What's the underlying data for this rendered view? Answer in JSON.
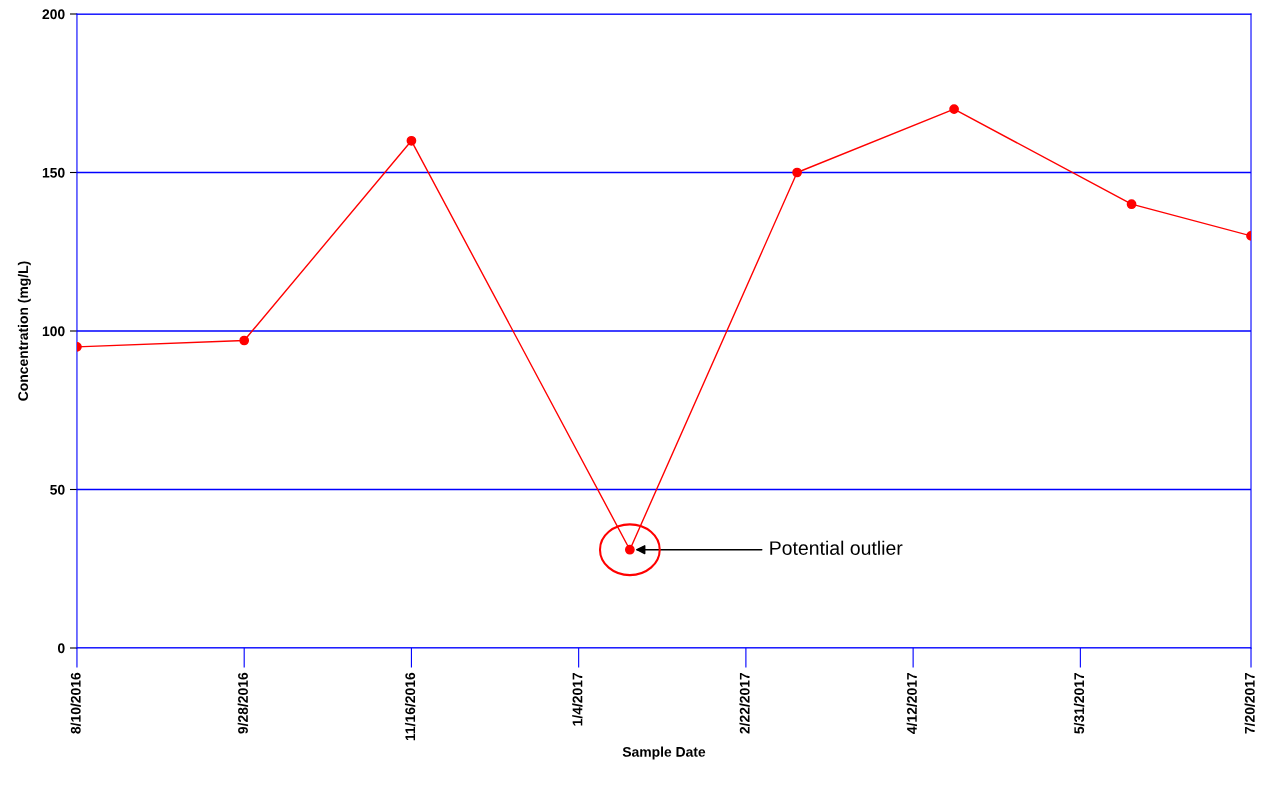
{
  "chart_data": {
    "type": "line",
    "xlabel": "Sample Date",
    "ylabel": "Concentration (mg/L)",
    "x": [
      "2016-08-10",
      "2016-09-28",
      "2016-11-16",
      "2017-01-19",
      "2017-03-09",
      "2017-04-24",
      "2017-06-15",
      "2017-07-20"
    ],
    "series": [
      {
        "color": "#ff0000",
        "values": [
          95,
          97,
          160,
          31,
          150,
          170,
          140,
          130
        ]
      }
    ],
    "xlim": [
      "2016-08-10",
      "2017-07-20"
    ],
    "xticks": [
      {
        "value": "2016-08-10",
        "label": "8/10/2016"
      },
      {
        "value": "2016-09-28",
        "label": "9/28/2016"
      },
      {
        "value": "2016-11-16",
        "label": "11/16/2016"
      },
      {
        "value": "2017-01-04",
        "label": "1/4/2017"
      },
      {
        "value": "2017-02-22",
        "label": "2/22/2017"
      },
      {
        "value": "2017-04-12",
        "label": "4/12/2017"
      },
      {
        "value": "2017-05-31",
        "label": "5/31/2017"
      },
      {
        "value": "2017-07-20",
        "label": "7/20/2017"
      }
    ],
    "ylim": [
      0,
      200
    ],
    "yticks": [
      0,
      50,
      100,
      150,
      200
    ],
    "grid": "y",
    "marker": "circle",
    "line_style": "solid",
    "annotations": [
      {
        "text": "Potential outlier",
        "x": "2017-01-19",
        "y": 31
      }
    ]
  }
}
